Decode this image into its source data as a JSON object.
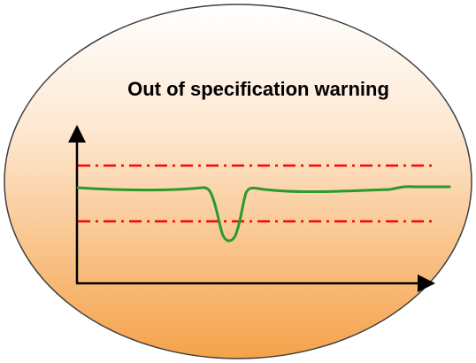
{
  "title": "Out of specification warning",
  "colors": {
    "ellipse_top": "#ffffff",
    "ellipse_bottom": "#f5a24a",
    "ellipse_stroke": "#404040",
    "axis": "#000000",
    "limit_lines": "#ff0000",
    "signal": "#2a9a2a"
  },
  "diagram": {
    "axes": {
      "x_arrow": true,
      "y_arrow": true
    },
    "limits": [
      "upper-limit",
      "lower-limit"
    ],
    "signal_shape": "flat line with a single dip below the lower limit"
  }
}
